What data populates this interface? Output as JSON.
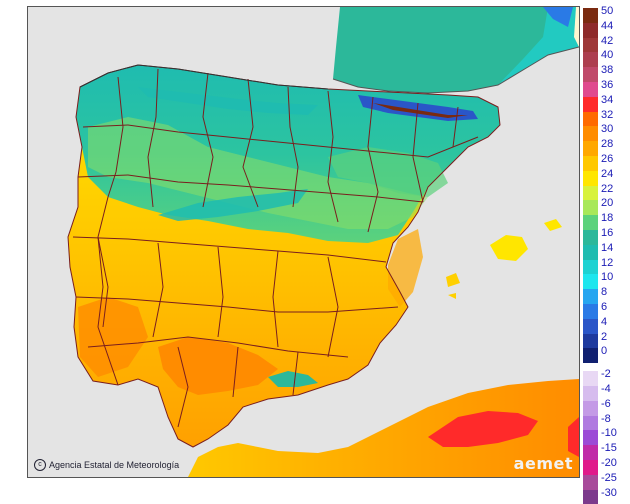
{
  "credit": {
    "symbol": "c",
    "text": "Agencia Estatal de Meteorología"
  },
  "logo": {
    "text": "aemet"
  },
  "legend": {
    "positive": [
      {
        "label": "50",
        "color": "#7a2a10"
      },
      {
        "label": "44",
        "color": "#8e2a2a"
      },
      {
        "label": "42",
        "color": "#9e3838"
      },
      {
        "label": "40",
        "color": "#ad3f4f"
      },
      {
        "label": "38",
        "color": "#c04a6a"
      },
      {
        "label": "36",
        "color": "#e04a8e"
      },
      {
        "label": "34",
        "color": "#ff2a2a"
      },
      {
        "label": "32",
        "color": "#ff6a00"
      },
      {
        "label": "30",
        "color": "#ff8c00"
      },
      {
        "label": "28",
        "color": "#ffa800"
      },
      {
        "label": "26",
        "color": "#ffc800"
      },
      {
        "label": "24",
        "color": "#ffe600"
      },
      {
        "label": "22",
        "color": "#d8f23c"
      },
      {
        "label": "20",
        "color": "#a8e85a"
      },
      {
        "label": "18",
        "color": "#5cd27c"
      },
      {
        "label": "16",
        "color": "#2cb89a"
      },
      {
        "label": "14",
        "color": "#1fbcb0"
      },
      {
        "label": "12",
        "color": "#1ed2d2"
      },
      {
        "label": "10",
        "color": "#1ee6ee"
      },
      {
        "label": "8",
        "color": "#26a6f0"
      },
      {
        "label": "6",
        "color": "#2a7ae6"
      },
      {
        "label": "4",
        "color": "#2a56c8"
      },
      {
        "label": "2",
        "color": "#1e3a9e"
      },
      {
        "label": "0",
        "color": "#102070"
      }
    ],
    "negative": [
      {
        "label": "-2",
        "color": "#e8d8f4"
      },
      {
        "label": "-4",
        "color": "#d6bcee"
      },
      {
        "label": "-6",
        "color": "#c49ae6"
      },
      {
        "label": "-8",
        "color": "#b07ae0"
      },
      {
        "label": "-10",
        "color": "#9c4ad6"
      },
      {
        "label": "-15",
        "color": "#c02aa8"
      },
      {
        "label": "-20",
        "color": "#e01a8a"
      },
      {
        "label": "-25",
        "color": "#a84a9a"
      },
      {
        "label": "-30",
        "color": "#7c3a8c"
      }
    ]
  }
}
